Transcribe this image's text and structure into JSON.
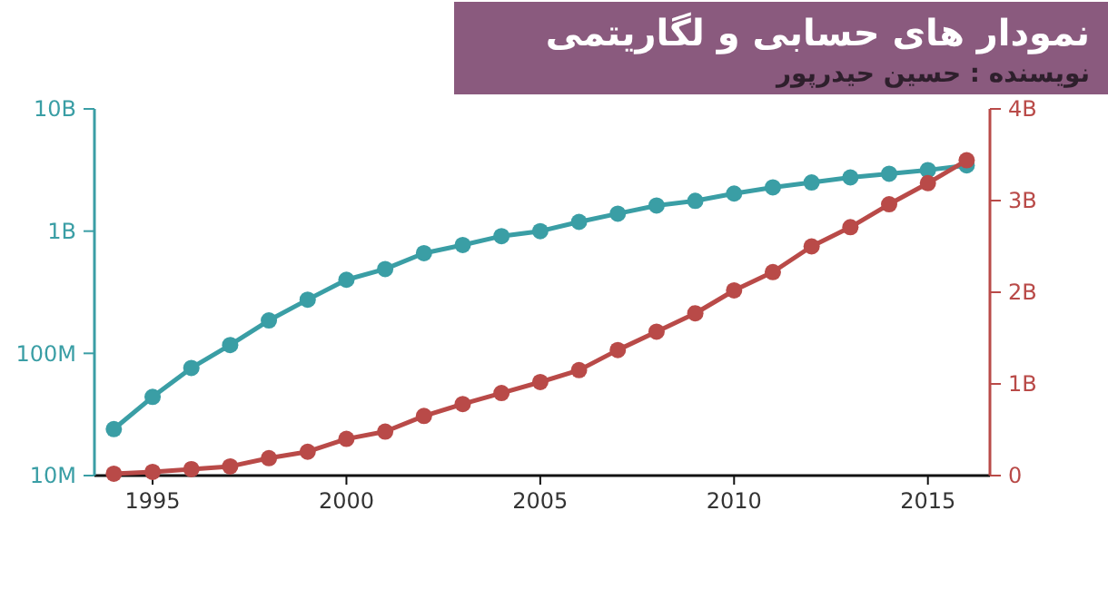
{
  "chart_data": {
    "type": "line",
    "title": "نمودار های حسابی و لگاریتمی",
    "subtitle": "نویسنده : حسین حیدرپور",
    "x": [
      1994,
      1995,
      1996,
      1997,
      1998,
      1999,
      2000,
      2001,
      2002,
      2003,
      2004,
      2005,
      2006,
      2007,
      2008,
      2009,
      2010,
      2011,
      2012,
      2013,
      2014,
      2015,
      2016
    ],
    "xlim": [
      1993.5,
      2016.6
    ],
    "xticks": [
      1995,
      2000,
      2005,
      2010,
      2015
    ],
    "log": "y",
    "ylim": [
      10000000,
      10000000000
    ],
    "yticks": [
      {
        "value": 10000000,
        "label": "10M"
      },
      {
        "value": 100000000,
        "label": "100M"
      },
      {
        "value": 1000000000,
        "label": "1B"
      },
      {
        "value": 10000000000,
        "label": "10B"
      }
    ],
    "y2lim": [
      0,
      4000000000
    ],
    "y2ticks": [
      {
        "value": 0,
        "label": "0"
      },
      {
        "value": 1000000000,
        "label": "1B"
      },
      {
        "value": 2000000000,
        "label": "2B"
      },
      {
        "value": 3000000000,
        "label": "3B"
      },
      {
        "value": 4000000000,
        "label": "4B"
      }
    ],
    "marker": "circle",
    "grid": false,
    "series": [
      {
        "color": "#3a9ea5",
        "values": [
          24000000,
          44000000,
          76000000,
          117000000,
          186000000,
          275000000,
          400000000,
          490000000,
          660000000,
          770000000,
          910000000,
          1000000000,
          1190000000,
          1390000000,
          1620000000,
          1770000000,
          2030000000,
          2280000000,
          2500000000,
          2750000000,
          2950000000,
          3160000000,
          3450000000
        ]
      },
      {
        "color": "#b94a48",
        "axis": "y2",
        "values": [
          20000000,
          40000000,
          70000000,
          100000000,
          190000000,
          260000000,
          400000000,
          480000000,
          650000000,
          780000000,
          900000000,
          1020000000,
          1150000000,
          1370000000,
          1570000000,
          1770000000,
          2020000000,
          2220000000,
          2500000000,
          2710000000,
          2960000000,
          3190000000,
          3440000000
        ]
      }
    ]
  }
}
